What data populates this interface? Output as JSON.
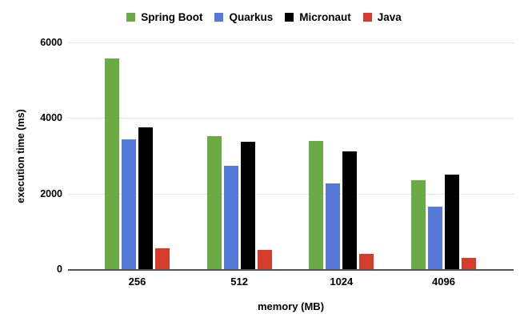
{
  "chart_data": {
    "type": "bar",
    "title": "",
    "categories": [
      "256",
      "512",
      "1024",
      "4096"
    ],
    "series": [
      {
        "name": "Spring Boot",
        "color": "#6aab46",
        "values": [
          5580,
          3510,
          3390,
          2360
        ]
      },
      {
        "name": "Quarkus",
        "color": "#5579d9",
        "values": [
          3440,
          2730,
          2280,
          1650
        ]
      },
      {
        "name": "Micronaut",
        "color": "#000000",
        "values": [
          3750,
          3370,
          3120,
          2500
        ]
      },
      {
        "name": "Java",
        "color": "#d63c2c",
        "values": [
          550,
          520,
          400,
          290
        ]
      }
    ],
    "xlabel": "memory (MB)",
    "ylabel": "execution time (ms)",
    "ylim": [
      0,
      6000
    ],
    "yticks": [
      0,
      2000,
      4000,
      6000
    ],
    "grid": true,
    "legend_position": "top"
  },
  "style": {
    "background": "#ffffff",
    "grid_color": "#e7e7e7",
    "axis_color": "#555555",
    "text_color": "#000000"
  }
}
